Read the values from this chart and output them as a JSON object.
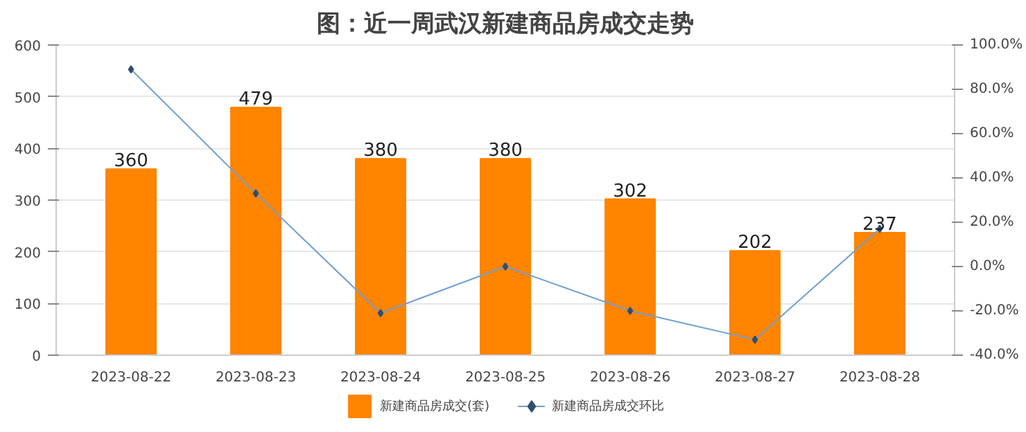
{
  "chart_data": {
    "type": "bar",
    "title": "图：近一周武汉新建商品房成交走势",
    "categories": [
      "2023-08-22",
      "2023-08-23",
      "2023-08-24",
      "2023-08-25",
      "2023-08-26",
      "2023-08-27",
      "2023-08-28"
    ],
    "series": [
      {
        "name": "新建商品房成交(套)",
        "color": "#ff8400",
        "values": [
          360,
          479,
          380,
          380,
          302,
          202,
          237
        ],
        "value_labels": [
          "360",
          "479",
          "380",
          "380",
          "302",
          "202",
          "237"
        ]
      },
      {
        "name": "新建商品房成交环比",
        "type": "line",
        "axis": "y2",
        "color": "#6f9fd0",
        "marker": "diamond",
        "values": [
          89,
          33,
          -21,
          0,
          -20,
          -33,
          17
        ]
      }
    ],
    "ylim": [
      0,
      600
    ],
    "yticks": [
      0,
      100,
      200,
      300,
      400,
      500,
      600
    ],
    "y2lim": [
      -40,
      100
    ],
    "y2ticks": [
      {
        "value": -40,
        "label": "-40.0%"
      },
      {
        "value": -20,
        "label": "-20.0%"
      },
      {
        "value": 0,
        "label": "0.0%"
      },
      {
        "value": 20,
        "label": "20.0%"
      },
      {
        "value": 40,
        "label": "40.0%"
      },
      {
        "value": 60,
        "label": "60.0%"
      },
      {
        "value": 80,
        "label": "80.0%"
      },
      {
        "value": 100,
        "label": "100.0%"
      }
    ],
    "grid": "y",
    "legend": "bottom"
  }
}
